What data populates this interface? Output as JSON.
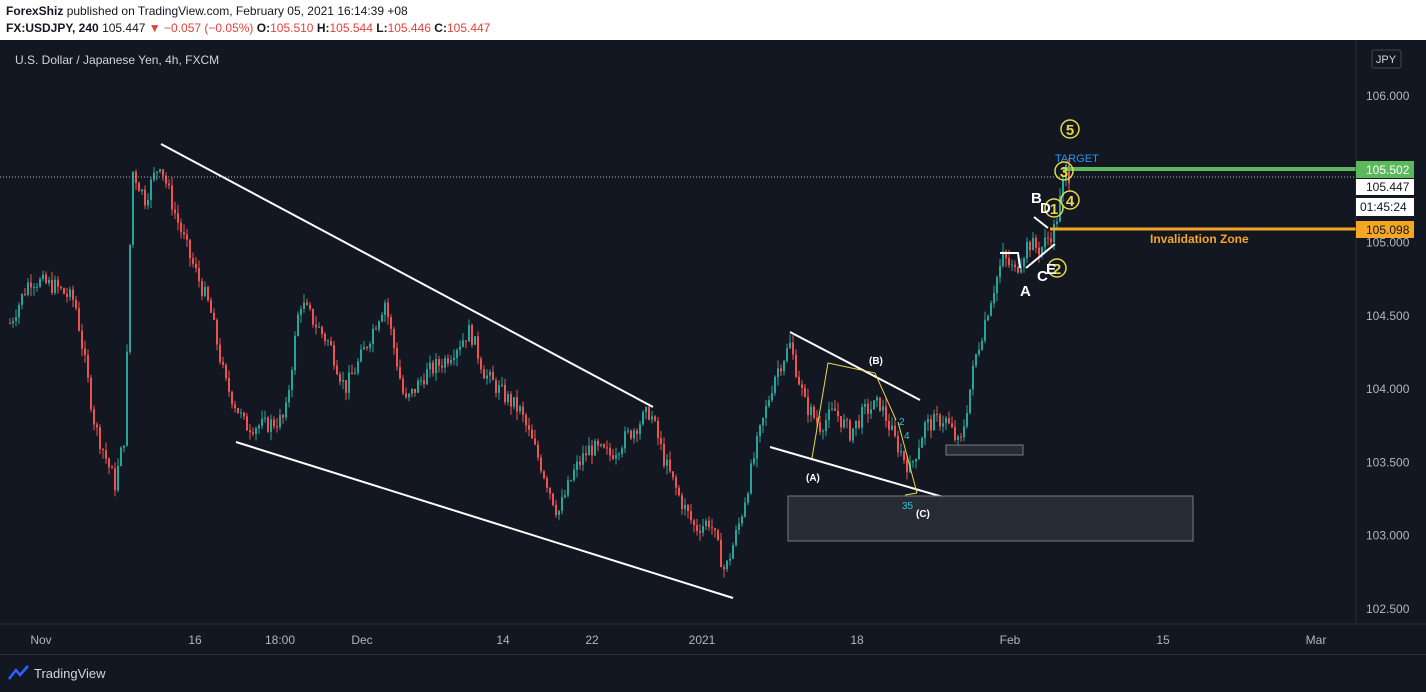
{
  "header": {
    "author": "ForexShiz",
    "published_text": "published on TradingView.com, February 05, 2021 16:14:39 +08",
    "symbol": "FX:USDJPY, 240",
    "last": "105.447",
    "change": "▼ −0.057 (−0.05%)",
    "o_label": "O:",
    "o_value": "105.510",
    "h_label": "H:",
    "h_value": "105.544",
    "l_label": "L:",
    "l_value": "105.446",
    "c_label": "C:",
    "c_value": "105.447"
  },
  "chart_data": {
    "type": "candlestick",
    "title": "U.S. Dollar / Japanese Yen, 4h, FXCM",
    "currency_badge": "JPY",
    "y_ticks": [
      "106.000",
      "105.500",
      "105.000",
      "104.500",
      "104.000",
      "103.500",
      "103.000",
      "102.500"
    ],
    "y_tick_values": [
      106.0,
      105.5,
      105.0,
      104.5,
      104.0,
      103.5,
      103.0,
      102.5
    ],
    "ylim": [
      102.4,
      106.35
    ],
    "x_ticks": [
      "Nov",
      "16",
      "18:00",
      "Dec",
      "14",
      "22",
      "2021",
      "18",
      "Feb",
      "15",
      "Mar"
    ],
    "grid": false,
    "key_prices": [
      {
        "name": "Last",
        "label": "105.447",
        "value": 105.447,
        "color": "#ffffff"
      },
      {
        "name": "Countdown",
        "label": "01:45:24",
        "value": 105.31,
        "color": "#ffffff"
      },
      {
        "name": "Target",
        "label": "105.502",
        "value": 105.502,
        "color": "#5cb85c"
      },
      {
        "name": "Invalidation",
        "label": "105.098",
        "value": 105.098,
        "color": "#f5a623"
      }
    ],
    "zone_labels": {
      "target": "TARGET",
      "invalidation": "Invalidation Zone"
    },
    "wave_labels": {
      "w1": "1",
      "w2": "2",
      "w3": "3",
      "w4": "4",
      "w5": "5",
      "A": "A",
      "B": "B",
      "C": "C",
      "D": "D",
      "E": "E",
      "pA": "(A)",
      "pB": "(B)",
      "pC": "(C)",
      "s2": "2",
      "s4": "4",
      "s35": "35"
    },
    "series": [
      {
        "name": "USDJPY",
        "x_dates": [
          "2020-10-28",
          "2021-02-05"
        ],
        "ohlc_last": [
          105.51,
          105.544,
          105.446,
          105.447
        ]
      }
    ]
  },
  "footer": {
    "brand": "TradingView"
  },
  "colors": {
    "up": "#26a69a",
    "down": "#ef5350",
    "background": "#131722",
    "axis_text": "#b2b5be",
    "target": "#5cb85c",
    "invalidation": "#f5a623"
  }
}
